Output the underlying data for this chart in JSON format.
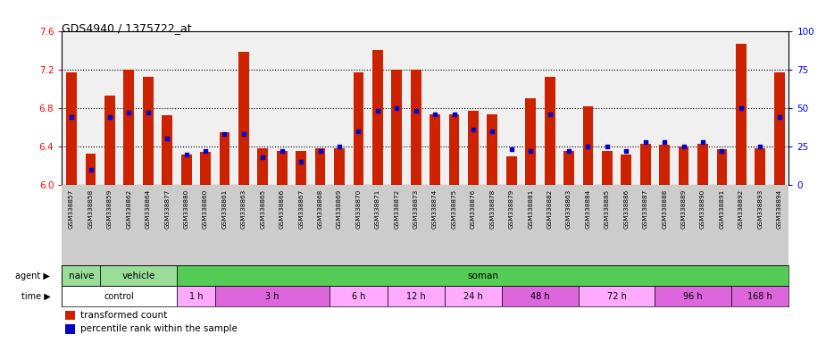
{
  "title": "GDS4940 / 1375722_at",
  "sample_labels": [
    "GSM338857",
    "GSM338858",
    "GSM338859",
    "GSM338862",
    "GSM338864",
    "GSM338877",
    "GSM338880",
    "GSM338860",
    "GSM338861",
    "GSM338863",
    "GSM338865",
    "GSM338866",
    "GSM338867",
    "GSM338868",
    "GSM338869",
    "GSM338870",
    "GSM338871",
    "GSM338872",
    "GSM338873",
    "GSM338874",
    "GSM338875",
    "GSM338876",
    "GSM338878",
    "GSM338879",
    "GSM338881",
    "GSM338882",
    "GSM338863",
    "GSM338884",
    "GSM338885",
    "GSM338886",
    "GSM338887",
    "GSM338888",
    "GSM338889",
    "GSM338890",
    "GSM338891",
    "GSM338892",
    "GSM338893",
    "GSM338894"
  ],
  "red_values": [
    7.17,
    6.33,
    6.93,
    7.2,
    7.12,
    6.72,
    6.32,
    6.34,
    6.55,
    7.38,
    6.38,
    6.35,
    6.35,
    6.38,
    6.38,
    7.17,
    7.4,
    7.2,
    7.2,
    6.73,
    6.73,
    6.77,
    6.73,
    6.3,
    6.9,
    7.12,
    6.35,
    6.82,
    6.35,
    6.32,
    6.43,
    6.42,
    6.4,
    6.43,
    6.37,
    7.47,
    6.38,
    7.17
  ],
  "blue_values": [
    44,
    10,
    44,
    47,
    47,
    30,
    20,
    22,
    33,
    33,
    18,
    22,
    15,
    22,
    25,
    35,
    48,
    50,
    48,
    46,
    46,
    36,
    35,
    23,
    22,
    46,
    22,
    25,
    25,
    22,
    28,
    28,
    25,
    28,
    22,
    50,
    25,
    44
  ],
  "ymin": 6.0,
  "ymax": 7.6,
  "yticks_left": [
    6.0,
    6.4,
    6.8,
    7.2,
    7.6
  ],
  "yticks_right": [
    0,
    25,
    50,
    75,
    100
  ],
  "dotted_lines": [
    6.4,
    6.8,
    7.2
  ],
  "bar_color": "#cc2200",
  "blue_color": "#0000cc",
  "xtick_bg": "#dddddd",
  "agent_spans": [
    {
      "label": "naive",
      "start": 0,
      "end": 2,
      "color": "#99dd99"
    },
    {
      "label": "vehicle",
      "start": 2,
      "end": 6,
      "color": "#99dd99"
    },
    {
      "label": "soman",
      "start": 6,
      "end": 38,
      "color": "#55cc55"
    }
  ],
  "time_spans": [
    {
      "label": "control",
      "start": 0,
      "end": 6,
      "color": "#ffffff"
    },
    {
      "label": "1 h",
      "start": 6,
      "end": 8,
      "color": "#ffaaff"
    },
    {
      "label": "3 h",
      "start": 8,
      "end": 14,
      "color": "#dd66dd"
    },
    {
      "label": "6 h",
      "start": 14,
      "end": 17,
      "color": "#ffaaff"
    },
    {
      "label": "12 h",
      "start": 17,
      "end": 20,
      "color": "#ffaaff"
    },
    {
      "label": "24 h",
      "start": 20,
      "end": 23,
      "color": "#ffaaff"
    },
    {
      "label": "48 h",
      "start": 23,
      "end": 27,
      "color": "#dd66dd"
    },
    {
      "label": "72 h",
      "start": 27,
      "end": 31,
      "color": "#ffaaff"
    },
    {
      "label": "96 h",
      "start": 31,
      "end": 35,
      "color": "#dd66dd"
    },
    {
      "label": "168 h",
      "start": 35,
      "end": 38,
      "color": "#dd66dd"
    }
  ],
  "legend_items": [
    {
      "label": "transformed count",
      "color": "#cc2200"
    },
    {
      "label": "percentile rank within the sample",
      "color": "#0000cc"
    }
  ]
}
